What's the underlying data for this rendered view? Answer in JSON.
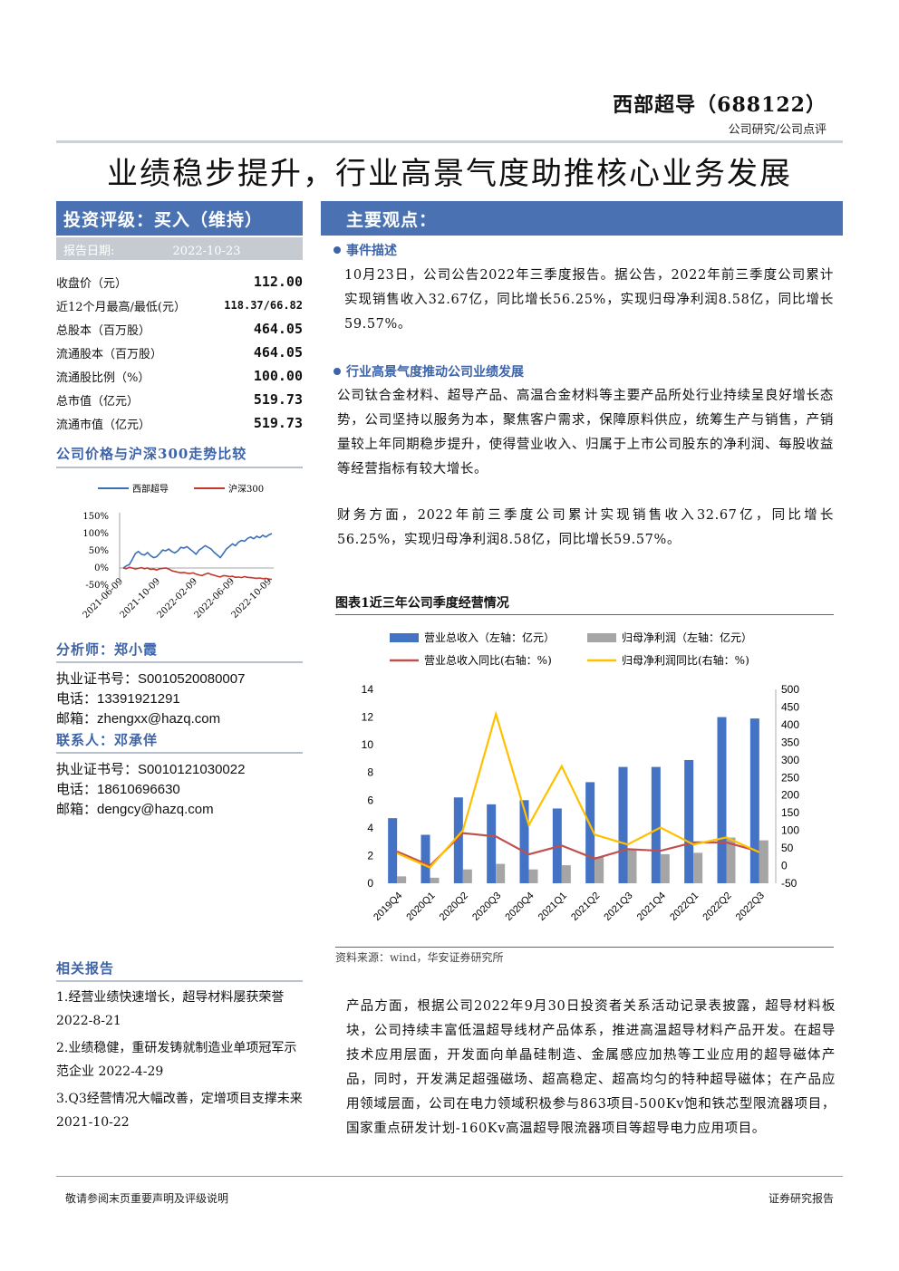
{
  "header": {
    "company": "西部超导（688122）",
    "category": "公司研究/公司点评"
  },
  "title": "业绩稳步提升，行业高景气度助推核心业务发展",
  "rating": {
    "label": "投资评级：买入（维持）",
    "date_label": "报告日期:",
    "date": "2022-10-23"
  },
  "stats": [
    {
      "label": "收盘价（元）",
      "value": "112.00"
    },
    {
      "label": "近12个月最高/最低(元）",
      "value": "118.37/66.82"
    },
    {
      "label": "总股本（百万股）",
      "value": "464.05"
    },
    {
      "label": "流通股本（百万股）",
      "value": "464.05"
    },
    {
      "label": "流通股比例（%）",
      "value": "100.00"
    },
    {
      "label": "总市值（亿元）",
      "value": "519.73"
    },
    {
      "label": "流通市值（亿元）",
      "value": "519.73"
    }
  ],
  "price_chart": {
    "title": "公司价格与沪深300走势比较",
    "legend": [
      "西部超导",
      "沪深300"
    ],
    "colors": [
      "#3b6fb6",
      "#c0392b"
    ],
    "y_ticks": [
      "150%",
      "100%",
      "50%",
      "0%",
      "-50%"
    ],
    "x_ticks": [
      "2021-06-09",
      "2021-10-09",
      "2022-02-09",
      "2022-06-09",
      "2022-10-09"
    ],
    "series_company": [
      0,
      6,
      10,
      25,
      42,
      48,
      40,
      38,
      45,
      36,
      30,
      33,
      42,
      52,
      50,
      55,
      48,
      44,
      50,
      60,
      58,
      62,
      55,
      48,
      40,
      52,
      58,
      65,
      60,
      55,
      45,
      38,
      30,
      42,
      55,
      62,
      70,
      65,
      75,
      80,
      78,
      86,
      90,
      85,
      92,
      88,
      95,
      90,
      96,
      100
    ],
    "series_index": [
      0,
      -2,
      2,
      0,
      -3,
      -1,
      1,
      -2,
      0,
      -4,
      -3,
      -6,
      -2,
      -1,
      0,
      -3,
      -8,
      -10,
      -12,
      -14,
      -13,
      -15,
      -16,
      -14,
      -18,
      -20,
      -22,
      -18,
      -15,
      -19,
      -21,
      -24,
      -26,
      -22,
      -23,
      -25,
      -24,
      -27,
      -26,
      -28,
      -25,
      -27,
      -28,
      -29,
      -30,
      -29,
      -31,
      -30,
      -32,
      -33
    ]
  },
  "analyst": {
    "title": "分析师：郑小霞",
    "cert": "执业证书号：S0010520080007",
    "phone": "电话：13391921291",
    "email": "邮箱：zhengxx@hazq.com"
  },
  "contact": {
    "title": "联系人：邓承佯",
    "cert": "执业证书号：S0010121030022",
    "phone": "电话：18610696630",
    "email": "邮箱：dengcy@hazq.com"
  },
  "related": {
    "title": "相关报告",
    "items": [
      "1.经营业绩快速增长，超导材料屡获荣誉 2022-8-21",
      "2.业绩稳健，重研发铸就制造业单项冠军示范企业 2022-4-29",
      "3.Q3经营情况大幅改善，定增项目支撑未来 2021-10-22"
    ]
  },
  "viewpoints": {
    "title": "主要观点：",
    "b1": "事件描述",
    "p1": "10月23日，公司公告2022年三季度报告。据公告，2022年前三季度公司累计实现销售收入32.67亿，同比增长56.25%，实现归母净利润8.58亿，同比增长59.57%。",
    "b2": "行业高景气度推动公司业绩发展",
    "p2": "公司钛合金材料、超导产品、高温合金材料等主要产品所处行业持续呈良好增长态势，公司坚持以服务为本，聚焦客户需求，保障原料供应，统筹生产与销售，产销量较上年同期稳步提升，使得营业收入、归属于上市公司股东的净利润、每股收益等经营指标有较大增长。",
    "p3": "财务方面，2022年前三季度公司累计实现销售收入32.67亿，同比增长56.25%，实现归母净利润8.58亿，同比增长59.57%。",
    "p4": "产品方面，根据公司2022年9月30日投资者关系活动记录表披露，超导材料板块，公司持续丰富低温超导线材产品体系，推进高温超导材料产品开发。在超导技术应用层面，开发面向单晶硅制造、金属感应加热等工业应用的超导磁体产品，同时，开发满足超强磁场、超高稳定、超高均匀的特种超导磁体；在产品应用领域层面，公司在电力领域积极参与863项目-500Kv饱和铁芯型限流器项目，国家重点研发计划-160Kv高温超导限流器项目等超导电力应用项目。"
  },
  "figure": {
    "title": "图表1近三年公司季度经营情况",
    "source": "资料来源：wind，华安证券研究所"
  },
  "chart_data": {
    "type": "bar",
    "categories": [
      "2019Q4",
      "2020Q1",
      "2020Q2",
      "2020Q3",
      "2020Q4",
      "2021Q1",
      "2021Q2",
      "2021Q3",
      "2021Q4",
      "2022Q1",
      "2022Q2",
      "2022Q3"
    ],
    "series": [
      {
        "name": "营业总收入（左轴：亿元）",
        "type": "bar",
        "axis": "left",
        "color": "#4472c4",
        "values": [
          4.7,
          3.5,
          6.2,
          5.7,
          6.0,
          5.4,
          7.3,
          8.4,
          8.4,
          8.9,
          12.0,
          11.9
        ]
      },
      {
        "name": "归母净利润（左轴：亿元）",
        "type": "bar",
        "axis": "left",
        "color": "#a5a5a5",
        "values": [
          0.5,
          0.4,
          1.0,
          1.4,
          1.0,
          1.3,
          1.9,
          2.4,
          2.1,
          2.2,
          3.3,
          3.1
        ]
      },
      {
        "name": "营业总收入同比(右轴：%)",
        "type": "line",
        "axis": "right",
        "color": "#c0504d",
        "values": [
          40,
          0,
          92,
          83,
          32,
          57,
          20,
          47,
          42,
          66,
          66,
          40
        ]
      },
      {
        "name": "归母净利润同比(右轴：%)",
        "type": "line",
        "axis": "right",
        "color": "#ffc000",
        "values": [
          35,
          -5,
          100,
          430,
          115,
          282,
          88,
          60,
          108,
          60,
          80,
          38
        ]
      }
    ],
    "left_axis": {
      "min": 0,
      "max": 14,
      "ticks": [
        0,
        2,
        4,
        6,
        8,
        10,
        12,
        14
      ]
    },
    "right_axis": {
      "min": -50,
      "max": 500,
      "ticks": [
        -50,
        0,
        50,
        100,
        150,
        200,
        250,
        300,
        350,
        400,
        450,
        500
      ]
    },
    "legend_position": "top"
  },
  "footer": {
    "left": "敬请参阅末页重要声明及评级说明",
    "right": "证券研究报告"
  }
}
